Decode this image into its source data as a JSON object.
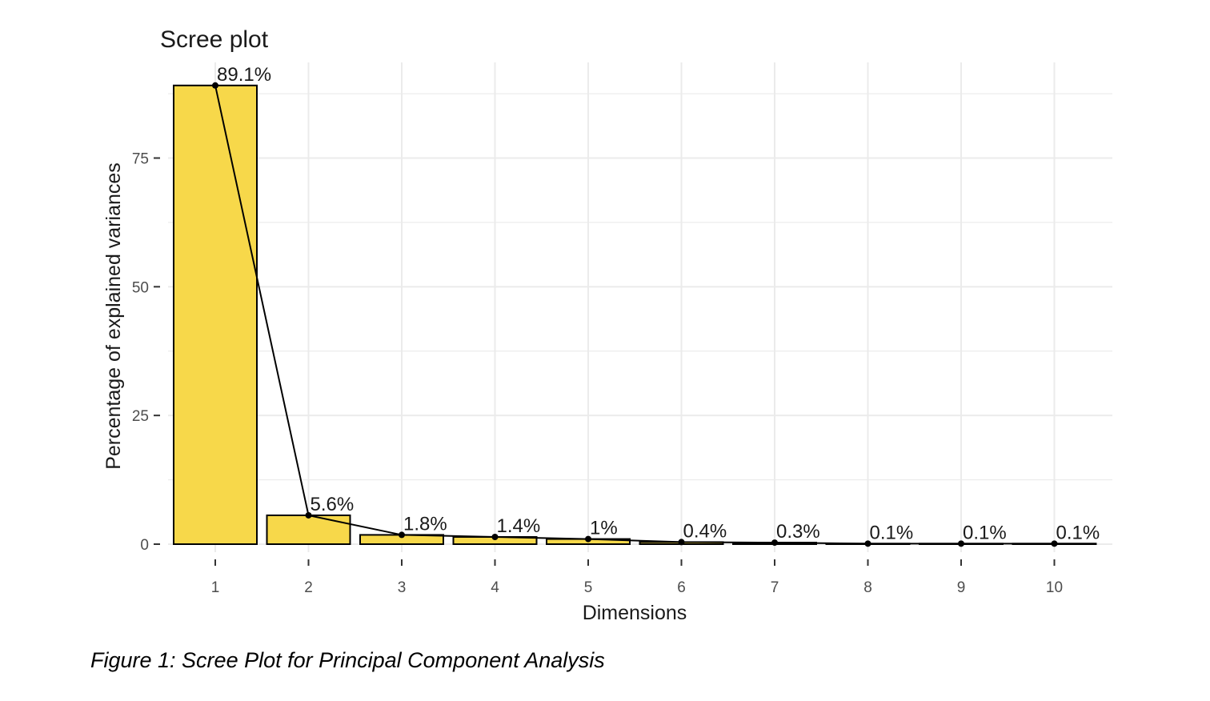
{
  "figure_caption": "Figure 1: Scree Plot for Principal Component Analysis",
  "colors": {
    "bar_fill": "#F7D84A",
    "bar_stroke": "#000000",
    "line": "#000000",
    "grid": "#EBEBEB"
  },
  "chart_data": {
    "type": "bar",
    "title": "Scree plot",
    "xlabel": "Dimensions",
    "ylabel": "Percentage of explained variances",
    "categories": [
      "1",
      "2",
      "3",
      "4",
      "5",
      "6",
      "7",
      "8",
      "9",
      "10"
    ],
    "values": [
      89.1,
      5.6,
      1.8,
      1.4,
      1.0,
      0.4,
      0.3,
      0.1,
      0.1,
      0.1
    ],
    "value_labels": [
      "89.1%",
      "5.6%",
      "1.8%",
      "1.4%",
      "1%",
      "0.4%",
      "0.3%",
      "0.1%",
      "0.1%",
      "0.1%"
    ],
    "yticks": [
      0,
      25,
      50,
      75
    ],
    "ylim": [
      -2,
      93
    ],
    "grid": true,
    "legend": "none",
    "overlay_line": true
  }
}
